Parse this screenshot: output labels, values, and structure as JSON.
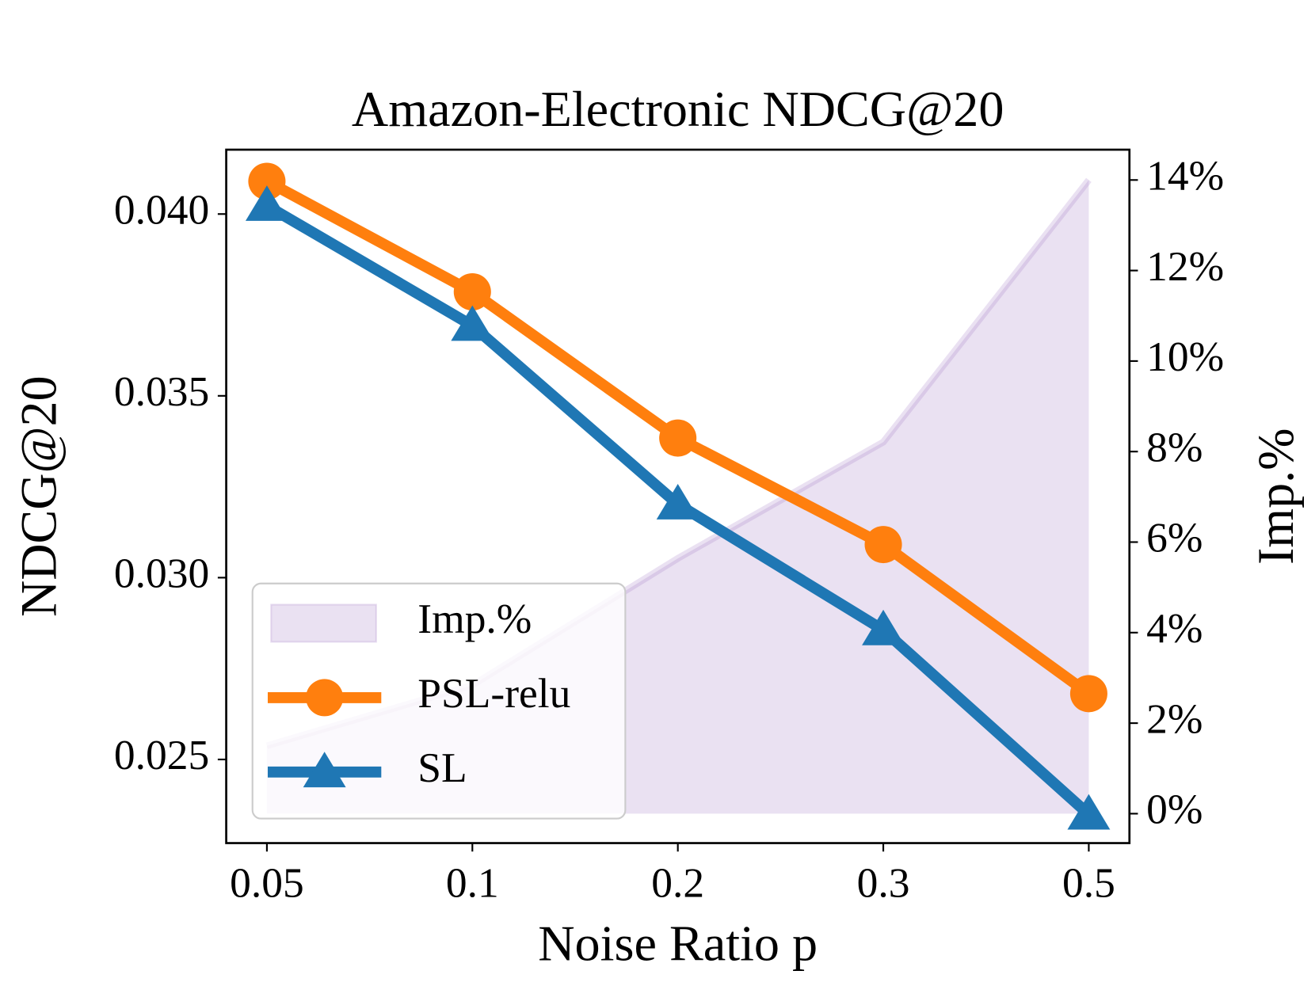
{
  "chart_data": {
    "type": "line",
    "title": "Amazon-Electronic  NDCG@20",
    "xlabel": "Noise Ratio p",
    "ylabel": "NDCG@20",
    "y2label": "Imp.%",
    "categories": [
      "0.05",
      "0.1",
      "0.2",
      "0.3",
      "0.5"
    ],
    "ylim": [
      0.0227,
      0.04177
    ],
    "yticks": [
      {
        "value": 0.025,
        "label": "0.025"
      },
      {
        "value": 0.03,
        "label": "0.030"
      },
      {
        "value": 0.035,
        "label": "0.035"
      },
      {
        "value": 0.04,
        "label": "0.040"
      }
    ],
    "y2lim": [
      -0.65,
      14.67
    ],
    "y2ticks": [
      {
        "value": 0,
        "label": "0%"
      },
      {
        "value": 2,
        "label": "2%"
      },
      {
        "value": 4,
        "label": "4%"
      },
      {
        "value": 6,
        "label": "6%"
      },
      {
        "value": 8,
        "label": "8%"
      },
      {
        "value": 10,
        "label": "10%"
      },
      {
        "value": 12,
        "label": "12%"
      },
      {
        "value": 14,
        "label": "14%"
      }
    ],
    "legend": "lower left",
    "series": [
      {
        "name": "Imp.%",
        "type": "area",
        "axis": "y2",
        "color": "#9467bd",
        "values": [
          1.5,
          2.84,
          5.64,
          8.21,
          14.0
        ]
      },
      {
        "name": "PSL-relu",
        "type": "line",
        "marker": "circle",
        "color": "#ff7f0e",
        "values": [
          0.0409,
          0.03786,
          0.03384,
          0.03091,
          0.02681
        ]
      },
      {
        "name": "SL",
        "type": "line",
        "marker": "triangle",
        "color": "#1f77b4",
        "values": [
          0.04023,
          0.03693,
          0.03202,
          0.02856,
          0.02349
        ]
      }
    ]
  }
}
